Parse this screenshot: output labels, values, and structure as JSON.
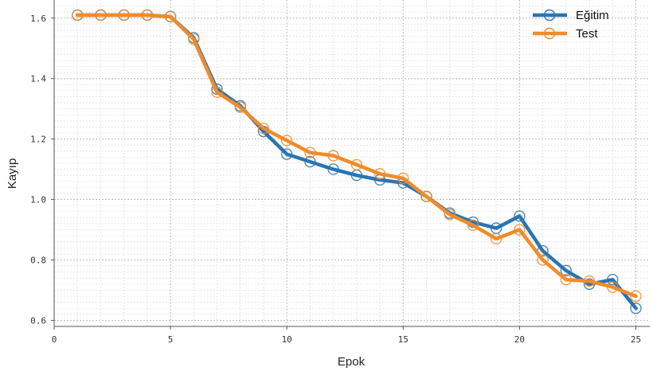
{
  "chart_data": {
    "type": "line",
    "xlabel": "Epok",
    "ylabel": "Kayıp",
    "xlim": [
      0,
      25.6
    ],
    "ylim": [
      0.58,
      1.66
    ],
    "xticks": [
      0,
      5,
      10,
      15,
      20,
      25
    ],
    "yticks": [
      0.6,
      0.8,
      1.0,
      1.2,
      1.4,
      1.6
    ],
    "ytick_labels": [
      "0.6",
      "0.8",
      "1.0",
      "1.2",
      "1.4",
      "1.6"
    ],
    "grid": true,
    "legend_position": "top-right",
    "x": [
      1,
      2,
      3,
      4,
      5,
      6,
      7,
      8,
      9,
      10,
      11,
      12,
      13,
      14,
      15,
      16,
      17,
      18,
      19,
      20,
      21,
      22,
      23,
      24,
      25
    ],
    "series": [
      {
        "name": "Eğitim",
        "color": "#2a74b3",
        "values": [
          1.61,
          1.61,
          1.61,
          1.61,
          1.605,
          1.535,
          1.365,
          1.31,
          1.225,
          1.15,
          1.125,
          1.1,
          1.08,
          1.065,
          1.055,
          1.01,
          0.955,
          0.925,
          0.905,
          0.945,
          0.83,
          0.765,
          0.72,
          0.735,
          0.64
        ]
      },
      {
        "name": "Test",
        "color": "#f08c2a",
        "values": [
          1.61,
          1.61,
          1.61,
          1.61,
          1.605,
          1.53,
          1.355,
          1.305,
          1.235,
          1.195,
          1.155,
          1.145,
          1.115,
          1.085,
          1.07,
          1.01,
          0.95,
          0.915,
          0.87,
          0.9,
          0.8,
          0.735,
          0.73,
          0.71,
          0.68
        ]
      }
    ]
  }
}
